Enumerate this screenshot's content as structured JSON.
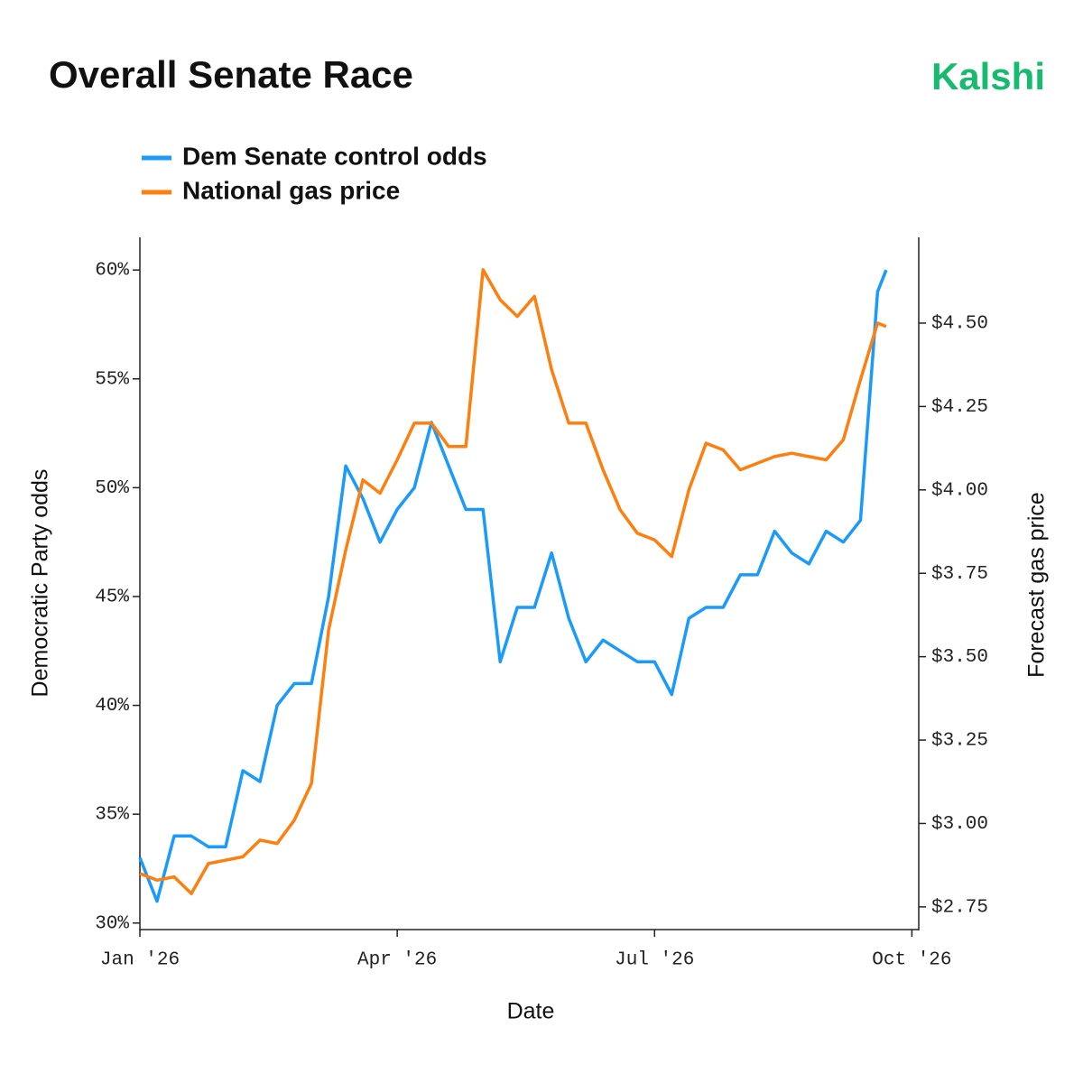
{
  "chart_data": {
    "type": "line",
    "title": "Overall Senate Race",
    "brand": "Kalshi",
    "x_label": "Date",
    "y_label": "Democratic Party odds",
    "y2_label": "Forecast gas price",
    "x": [
      0,
      0.2,
      0.4,
      0.6,
      0.8,
      1.0,
      1.2,
      1.4,
      1.6,
      1.8,
      2.0,
      2.2,
      2.4,
      2.6,
      2.8,
      3.0,
      3.2,
      3.4,
      3.6,
      3.8,
      4.0,
      4.2,
      4.4,
      4.6,
      4.8,
      5.0,
      5.2,
      5.4,
      5.6,
      5.8,
      6.0,
      6.2,
      6.4,
      6.6,
      6.8,
      7.0,
      7.2,
      7.4,
      7.6,
      7.8,
      8.0,
      8.2,
      8.4,
      8.6,
      8.7
    ],
    "xlim": [
      0,
      9.08
    ],
    "xticks": [
      {
        "value": 0,
        "label": "Jan '26"
      },
      {
        "value": 3,
        "label": "Apr '26"
      },
      {
        "value": 6,
        "label": "Jul '26"
      },
      {
        "value": 9,
        "label": "Oct '26"
      }
    ],
    "ylim": [
      29.7,
      61.5
    ],
    "yticks": [
      {
        "value": 30,
        "label": "30%"
      },
      {
        "value": 35,
        "label": "35%"
      },
      {
        "value": 40,
        "label": "40%"
      },
      {
        "value": 45,
        "label": "45%"
      },
      {
        "value": 50,
        "label": "50%"
      },
      {
        "value": 55,
        "label": "55%"
      },
      {
        "value": 60,
        "label": "60%"
      }
    ],
    "y2lim": [
      2.682,
      4.757
    ],
    "y2ticks": [
      {
        "value": 2.75,
        "label": "$2.75"
      },
      {
        "value": 3.0,
        "label": "$3.00"
      },
      {
        "value": 3.25,
        "label": "$3.25"
      },
      {
        "value": 3.5,
        "label": "$3.50"
      },
      {
        "value": 3.75,
        "label": "$3.75"
      },
      {
        "value": 4.0,
        "label": "$4.00"
      },
      {
        "value": 4.25,
        "label": "$4.25"
      },
      {
        "value": 4.5,
        "label": "$4.50"
      }
    ],
    "series": [
      {
        "name": "Dem Senate control odds",
        "color": "#1a9bfc",
        "axis": "y",
        "values": [
          33,
          31,
          34,
          34,
          33.5,
          33.5,
          37,
          36.5,
          40,
          41,
          41,
          45,
          51,
          49.5,
          47.5,
          49,
          50,
          53,
          51,
          49,
          49,
          42,
          44.5,
          44.5,
          47,
          44,
          42,
          43,
          42.5,
          42,
          42,
          40.5,
          44,
          44.5,
          44.5,
          46,
          46,
          48,
          47,
          46.5,
          48,
          47.5,
          48.5,
          59,
          60
        ]
      },
      {
        "name": "National gas price",
        "color": "#ff7f0e",
        "axis": "y2",
        "values": [
          2.85,
          2.83,
          2.84,
          2.79,
          2.88,
          2.89,
          2.9,
          2.95,
          2.94,
          3.01,
          3.12,
          3.58,
          3.82,
          4.03,
          3.99,
          4.09,
          4.2,
          4.2,
          4.13,
          4.13,
          4.66,
          4.57,
          4.52,
          4.58,
          4.36,
          4.2,
          4.2,
          4.06,
          3.94,
          3.87,
          3.85,
          3.8,
          4.0,
          4.14,
          4.12,
          4.06,
          4.08,
          4.1,
          4.11,
          4.1,
          4.09,
          4.15,
          4.33,
          4.5,
          4.49
        ]
      }
    ]
  }
}
